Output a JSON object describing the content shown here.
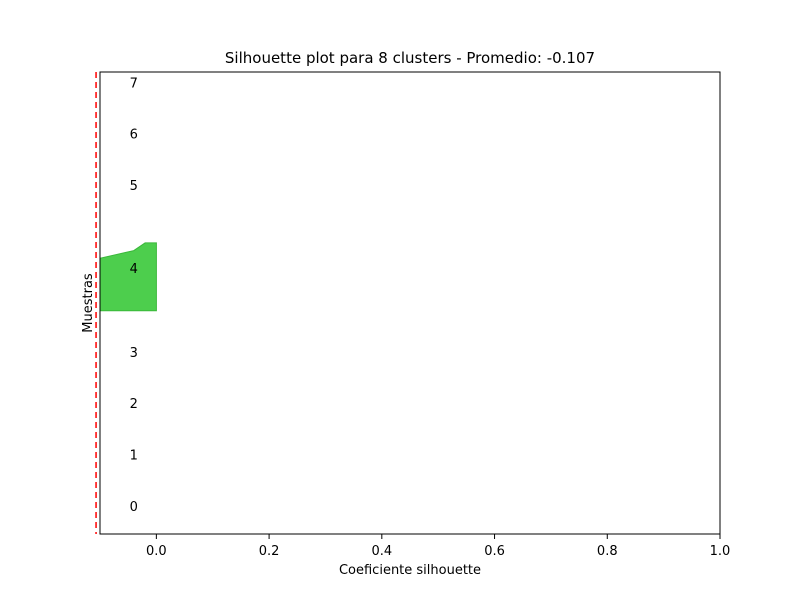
{
  "chart_data": {
    "type": "area",
    "title": "Silhouette plot para 8 clusters - Promedio: -0.107",
    "xlabel": "Coeficiente silhouette",
    "ylabel": "Muestras",
    "xlim": [
      -0.1,
      1.0
    ],
    "ylim": [
      0,
      90
    ],
    "grid": false,
    "xticks": [
      {
        "value": 0.0,
        "label": "0.0"
      },
      {
        "value": 0.2,
        "label": "0.2"
      },
      {
        "value": 0.4,
        "label": "0.4"
      },
      {
        "value": 0.6,
        "label": "0.6"
      },
      {
        "value": 0.8,
        "label": "0.8"
      },
      {
        "value": 1.0,
        "label": "1.0"
      }
    ],
    "cluster_labels": [
      {
        "name": "0",
        "x": -0.04,
        "y": 5.5
      },
      {
        "name": "1",
        "x": -0.04,
        "y": 15.5
      },
      {
        "name": "2",
        "x": -0.04,
        "y": 25.5
      },
      {
        "name": "3",
        "x": -0.04,
        "y": 35.5
      },
      {
        "name": "4",
        "x": -0.04,
        "y": 51.8
      },
      {
        "name": "5",
        "x": -0.04,
        "y": 68.0
      },
      {
        "name": "6",
        "x": -0.04,
        "y": 78.0
      },
      {
        "name": "7",
        "x": -0.04,
        "y": 88.0
      }
    ],
    "series": [
      {
        "cluster": "4",
        "color": "#4dce4d",
        "edge": "#3ab83a",
        "profile": [
          {
            "y": 43.5,
            "x": 0.0
          },
          {
            "y": 53.7,
            "x": 0.0
          },
          {
            "y": 56.7,
            "x": 0.0
          },
          {
            "y": 56.7,
            "x": -0.02
          },
          {
            "y": 55.2,
            "x": -0.04
          },
          {
            "y": 53.7,
            "x": -0.1
          },
          {
            "y": 43.5,
            "x": -0.1
          }
        ]
      }
    ],
    "avg_line": {
      "x": -0.107,
      "color": "#ff0000"
    }
  }
}
